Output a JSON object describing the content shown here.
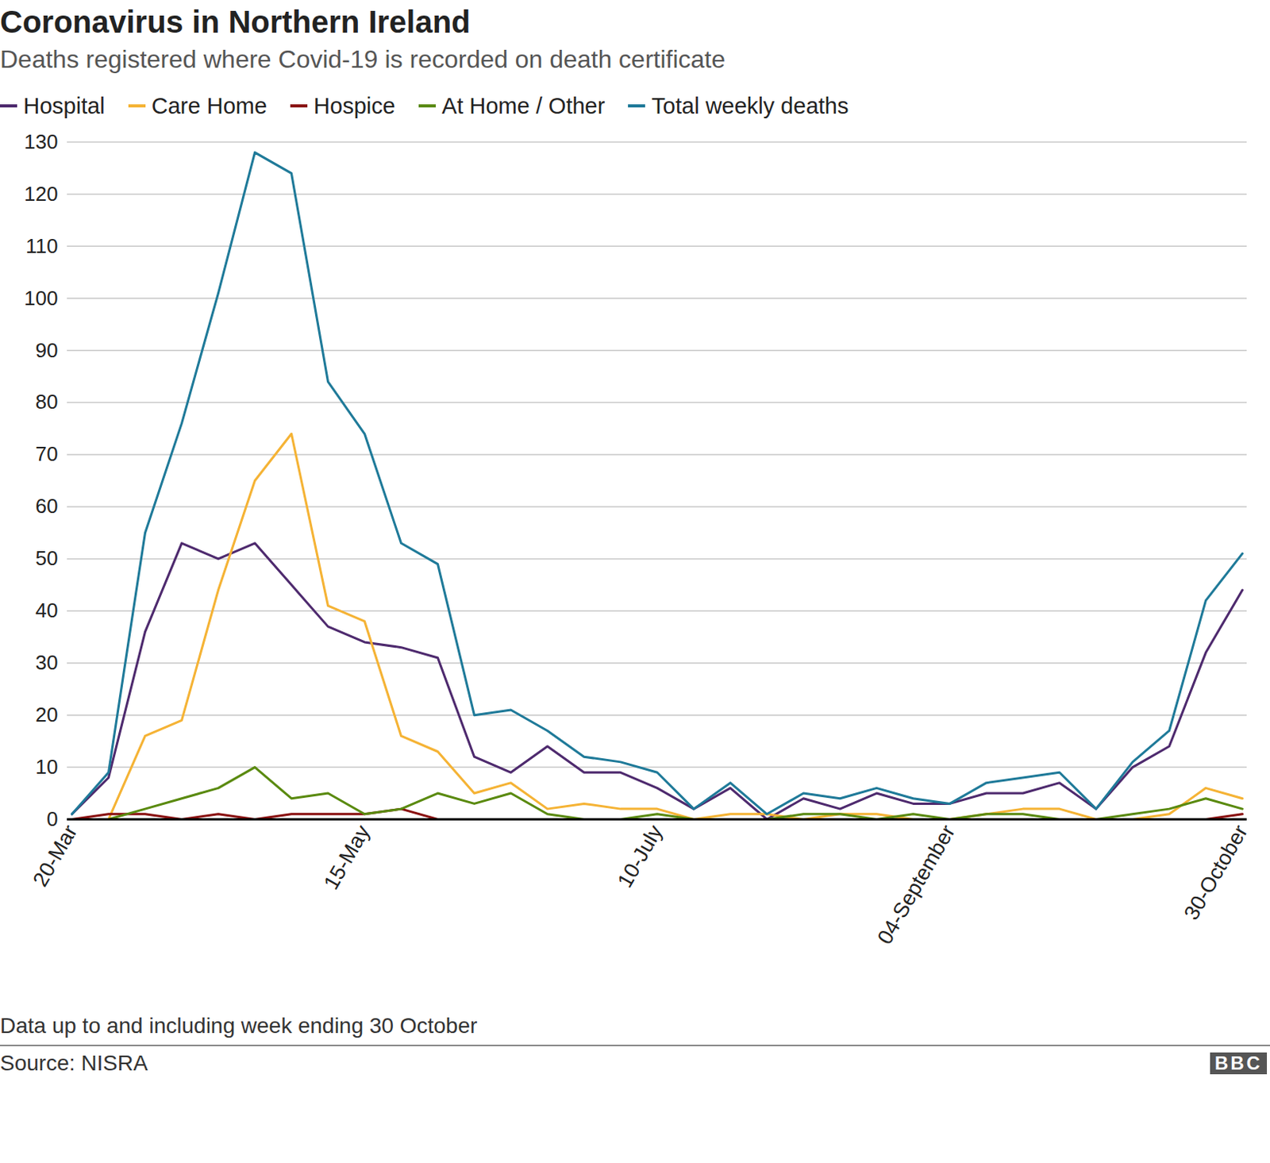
{
  "chart_data": {
    "type": "line",
    "title": "Coronavirus in Northern Ireland",
    "subtitle": "Deaths registered where Covid-19 is recorded on death certificate",
    "note": "Data up to and including week ending 30 October",
    "source": "Source: NISRA",
    "logo": "BBC",
    "categories": [
      "20-Mar",
      null,
      null,
      null,
      null,
      null,
      null,
      null,
      "15-May",
      null,
      null,
      null,
      null,
      null,
      null,
      null,
      "10-July",
      null,
      null,
      null,
      null,
      null,
      null,
      null,
      "04-September",
      null,
      null,
      null,
      null,
      null,
      null,
      null,
      "30-October"
    ],
    "series": [
      {
        "name": "Hospital",
        "color": "#4e2a6e",
        "values": [
          1,
          8,
          36,
          53,
          50,
          53,
          45,
          37,
          34,
          33,
          31,
          12,
          9,
          14,
          9,
          9,
          6,
          2,
          6,
          0,
          4,
          2,
          5,
          3,
          3,
          5,
          5,
          7,
          2,
          10,
          14,
          32,
          44
        ]
      },
      {
        "name": "Care Home",
        "color": "#f5b335",
        "values": [
          0,
          0,
          16,
          19,
          44,
          65,
          74,
          41,
          38,
          16,
          13,
          5,
          7,
          2,
          3,
          2,
          2,
          0,
          1,
          1,
          0,
          1,
          1,
          0,
          0,
          1,
          2,
          2,
          0,
          0,
          1,
          6,
          4
        ]
      },
      {
        "name": "Hospice",
        "color": "#8a1010",
        "values": [
          0,
          1,
          1,
          0,
          1,
          0,
          1,
          1,
          1,
          2,
          0,
          0,
          0,
          0,
          0,
          0,
          0,
          0,
          0,
          0,
          0,
          0,
          0,
          0,
          0,
          0,
          0,
          0,
          0,
          0,
          0,
          0,
          1
        ]
      },
      {
        "name": "At Home / Other",
        "color": "#5a8a10",
        "values": [
          0,
          0,
          2,
          4,
          6,
          10,
          4,
          5,
          1,
          2,
          5,
          3,
          5,
          1,
          0,
          0,
          1,
          0,
          0,
          0,
          1,
          1,
          0,
          1,
          0,
          1,
          1,
          0,
          0,
          1,
          2,
          4,
          2
        ]
      },
      {
        "name": "Total weekly deaths",
        "color": "#1f7a99",
        "values": [
          1,
          9,
          55,
          76,
          101,
          128,
          124,
          84,
          74,
          53,
          49,
          20,
          21,
          17,
          12,
          11,
          9,
          2,
          7,
          1,
          5,
          4,
          6,
          4,
          3,
          7,
          8,
          9,
          2,
          11,
          17,
          42,
          51
        ]
      }
    ],
    "ylim": [
      0,
      130
    ],
    "yticks": [
      0,
      10,
      20,
      30,
      40,
      50,
      60,
      70,
      80,
      90,
      100,
      110,
      120,
      130
    ],
    "grid": true,
    "legend": "top"
  }
}
